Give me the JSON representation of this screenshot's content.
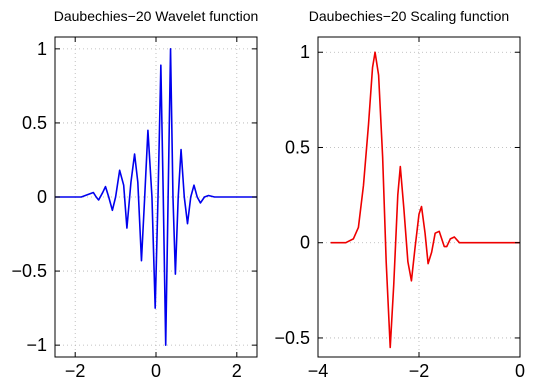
{
  "chart_data": [
    {
      "type": "line",
      "title": "Daubechies−20 Wavelet function",
      "xlabel": "",
      "ylabel": "",
      "xlim": [
        -2.5,
        2.5
      ],
      "ylim": [
        -1.08,
        1.08
      ],
      "grid": true,
      "xticks": [
        -2,
        0,
        2
      ],
      "xtick_labels": [
        "−2",
        "0",
        "2"
      ],
      "yticks": [
        -1,
        -0.5,
        0,
        0.5,
        1
      ],
      "ytick_labels": [
        "−1",
        "−0.5",
        "0",
        "0.5",
        "1"
      ],
      "series": [
        {
          "color": "#0000ee",
          "points": [
            [
              -2.5,
              0.0
            ],
            [
              -2.0,
              0.0
            ],
            [
              -1.85,
              0.0
            ],
            [
              -1.65,
              0.02
            ],
            [
              -1.55,
              0.03
            ],
            [
              -1.48,
              0.0
            ],
            [
              -1.42,
              -0.02
            ],
            [
              -1.38,
              0.0
            ],
            [
              -1.32,
              0.03
            ],
            [
              -1.25,
              0.07
            ],
            [
              -1.17,
              0.0
            ],
            [
              -1.08,
              -0.09
            ],
            [
              -1.0,
              0.0
            ],
            [
              -0.9,
              0.18
            ],
            [
              -0.8,
              0.08
            ],
            [
              -0.72,
              -0.21
            ],
            [
              -0.62,
              0.1
            ],
            [
              -0.53,
              0.29
            ],
            [
              -0.45,
              0.1
            ],
            [
              -0.36,
              -0.43
            ],
            [
              -0.28,
              0.0
            ],
            [
              -0.2,
              0.45
            ],
            [
              -0.1,
              0.0
            ],
            [
              -0.02,
              -0.75
            ],
            [
              0.05,
              0.0
            ],
            [
              0.12,
              0.89
            ],
            [
              0.18,
              0.0
            ],
            [
              0.24,
              -1.0
            ],
            [
              0.3,
              0.0
            ],
            [
              0.36,
              1.0
            ],
            [
              0.42,
              0.0
            ],
            [
              0.48,
              -0.52
            ],
            [
              0.55,
              0.0
            ],
            [
              0.62,
              0.32
            ],
            [
              0.7,
              0.0
            ],
            [
              0.78,
              -0.18
            ],
            [
              0.86,
              0.0
            ],
            [
              0.94,
              0.08
            ],
            [
              1.02,
              0.0
            ],
            [
              1.1,
              -0.04
            ],
            [
              1.2,
              0.0
            ],
            [
              1.3,
              0.01
            ],
            [
              1.45,
              0.0
            ],
            [
              2.0,
              0.0
            ],
            [
              2.5,
              0.0
            ]
          ]
        }
      ]
    },
    {
      "type": "line",
      "title": "Daubechies−20 Scaling function",
      "xlabel": "",
      "ylabel": "",
      "xlim": [
        -4,
        0
      ],
      "ylim": [
        -0.6,
        1.08
      ],
      "grid": true,
      "xticks": [
        -4,
        -2,
        0
      ],
      "xtick_labels": [
        "−4",
        "−2",
        "0"
      ],
      "yticks": [
        -0.5,
        0,
        0.5,
        1
      ],
      "ytick_labels": [
        "−0.5",
        "0",
        "0.5",
        "1"
      ],
      "series": [
        {
          "color": "#ee0000",
          "points": [
            [
              -3.75,
              0.0
            ],
            [
              -3.45,
              0.0
            ],
            [
              -3.3,
              0.02
            ],
            [
              -3.2,
              0.08
            ],
            [
              -3.1,
              0.3
            ],
            [
              -3.0,
              0.62
            ],
            [
              -2.92,
              0.92
            ],
            [
              -2.87,
              1.0
            ],
            [
              -2.8,
              0.88
            ],
            [
              -2.72,
              0.45
            ],
            [
              -2.65,
              -0.1
            ],
            [
              -2.57,
              -0.55
            ],
            [
              -2.5,
              -0.22
            ],
            [
              -2.42,
              0.25
            ],
            [
              -2.37,
              0.4
            ],
            [
              -2.3,
              0.18
            ],
            [
              -2.22,
              -0.1
            ],
            [
              -2.15,
              -0.2
            ],
            [
              -2.08,
              -0.03
            ],
            [
              -2.0,
              0.15
            ],
            [
              -1.95,
              0.19
            ],
            [
              -1.88,
              0.05
            ],
            [
              -1.82,
              -0.11
            ],
            [
              -1.75,
              -0.05
            ],
            [
              -1.68,
              0.05
            ],
            [
              -1.6,
              0.06
            ],
            [
              -1.5,
              -0.02
            ],
            [
              -1.45,
              -0.02
            ],
            [
              -1.38,
              0.02
            ],
            [
              -1.3,
              0.03
            ],
            [
              -1.2,
              0.0
            ],
            [
              -1.0,
              0.0
            ],
            [
              0.0,
              0.0
            ]
          ]
        }
      ]
    }
  ]
}
